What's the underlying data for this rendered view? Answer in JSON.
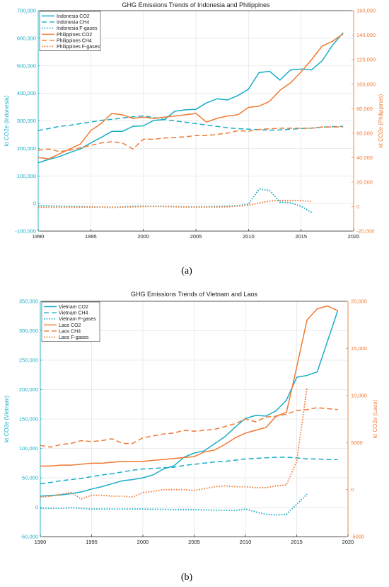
{
  "colors": {
    "left": "#1aaec6",
    "right": "#f07a35",
    "grid": "#e6e6e6",
    "axis": "#222222"
  },
  "chart_data": [
    {
      "type": "line",
      "caption": "(a)",
      "title": "GHG Emissions Trends of Indonesia and Philippines",
      "xlabel": "",
      "xlim": [
        1990,
        2020
      ],
      "xticks": [
        1990,
        1995,
        2000,
        2005,
        2010,
        2015,
        2020
      ],
      "left_axis": {
        "label": "kt CO2e (Indonesia)",
        "lim": [
          -100000,
          700000
        ],
        "ticks": [
          -100000,
          0,
          100000,
          200000,
          300000,
          400000,
          500000,
          600000,
          700000
        ],
        "tick_labels": [
          "-100,000",
          "0",
          "100,000",
          "200,000",
          "300,000",
          "400,000",
          "500,000",
          "600,000",
          "700,000"
        ]
      },
      "right_axis": {
        "label": "kt CO2e (Philippines)",
        "lim": [
          -20000,
          160000
        ],
        "ticks": [
          -20000,
          0,
          20000,
          40000,
          60000,
          80000,
          100000,
          120000,
          140000,
          160000
        ],
        "tick_labels": [
          "-20,000",
          "0",
          "20,000",
          "40,000",
          "60,000",
          "80,000",
          "100,000",
          "120,000",
          "140,000",
          "160,000"
        ]
      },
      "legend_position": "top-left",
      "series": [
        {
          "name": "Indonesia CO2",
          "axis": "left",
          "style": "solid",
          "x": [
            1990,
            1991,
            1992,
            1993,
            1994,
            1995,
            1996,
            1997,
            1998,
            1999,
            2000,
            2001,
            2002,
            2003,
            2004,
            2005,
            2006,
            2007,
            2008,
            2009,
            2010,
            2011,
            2012,
            2013,
            2014,
            2015,
            2016,
            2017,
            2018,
            2019
          ],
          "y": [
            148000,
            160000,
            170000,
            185000,
            198000,
            220000,
            240000,
            262000,
            262000,
            280000,
            282000,
            302000,
            305000,
            335000,
            340000,
            342000,
            365000,
            380000,
            376000,
            392000,
            415000,
            475000,
            480000,
            448000,
            485000,
            488000,
            485000,
            518000,
            575000,
            620000
          ]
        },
        {
          "name": "Indonesia CH4",
          "axis": "left",
          "style": "dashed",
          "x": [
            1990,
            1991,
            1992,
            1993,
            1994,
            1995,
            1996,
            1997,
            1998,
            1999,
            2000,
            2001,
            2002,
            2003,
            2004,
            2005,
            2006,
            2007,
            2008,
            2009,
            2010,
            2011,
            2012,
            2013,
            2014,
            2015,
            2016,
            2017,
            2018,
            2019
          ],
          "y": [
            265000,
            272000,
            280000,
            284000,
            290000,
            296000,
            302000,
            306000,
            310000,
            315000,
            318000,
            312000,
            305000,
            300000,
            295000,
            290000,
            285000,
            280000,
            275000,
            272000,
            270000,
            268000,
            266000,
            267000,
            270000,
            272000,
            274000,
            277000,
            279000,
            280000
          ]
        },
        {
          "name": "Indonesia F-gases",
          "axis": "left",
          "style": "dotted",
          "x": [
            1990,
            1991,
            1992,
            1993,
            1994,
            1995,
            1996,
            1997,
            1998,
            1999,
            2000,
            2001,
            2002,
            2003,
            2004,
            2005,
            2006,
            2007,
            2008,
            2009,
            2010,
            2011,
            2012,
            2013,
            2014,
            2015,
            2016
          ],
          "y": [
            -8000,
            -8000,
            -9000,
            -10000,
            -11000,
            -12000,
            -13000,
            -14000,
            -12000,
            -10000,
            -9000,
            -9000,
            -10000,
            -11000,
            -12000,
            -12000,
            -11000,
            -10000,
            -9000,
            -8000,
            -2000,
            52000,
            48000,
            5000,
            3000,
            -10000,
            -32000
          ]
        },
        {
          "name": "Philippines CO2",
          "axis": "right",
          "style": "solid",
          "x": [
            1990,
            1991,
            1992,
            1993,
            1994,
            1995,
            1996,
            1997,
            1998,
            1999,
            2000,
            2001,
            2002,
            2003,
            2004,
            2005,
            2006,
            2007,
            2008,
            2009,
            2010,
            2011,
            2012,
            2013,
            2014,
            2015,
            2016,
            2017,
            2018,
            2019
          ],
          "y": [
            40000,
            39000,
            43000,
            47000,
            51000,
            62000,
            68000,
            76000,
            75000,
            72000,
            73000,
            72000,
            73000,
            74000,
            75000,
            76000,
            69000,
            72000,
            74000,
            75000,
            81000,
            82000,
            86000,
            95000,
            101000,
            110000,
            120000,
            131000,
            135000,
            141000
          ]
        },
        {
          "name": "Philippines CH4",
          "axis": "right",
          "style": "dashed",
          "x": [
            1990,
            1991,
            1992,
            1993,
            1994,
            1995,
            1996,
            1997,
            1998,
            1999,
            2000,
            2001,
            2002,
            2003,
            2004,
            2005,
            2006,
            2007,
            2008,
            2009,
            2010,
            2011,
            2012,
            2013,
            2014,
            2015,
            2016,
            2017,
            2018,
            2019
          ],
          "y": [
            46000,
            47000,
            45000,
            46000,
            48000,
            50000,
            52000,
            53000,
            52000,
            47000,
            55000,
            55000,
            56000,
            56500,
            57000,
            58000,
            58000,
            59000,
            60000,
            62000,
            61500,
            63000,
            63500,
            64000,
            64000,
            64000,
            64000,
            65000,
            65000,
            65000
          ]
        },
        {
          "name": "Philippines F-gases",
          "axis": "right",
          "style": "dotted",
          "x": [
            1990,
            1992,
            1994,
            1996,
            1998,
            2000,
            2002,
            2004,
            2006,
            2008,
            2010,
            2011,
            2012,
            2013,
            2014,
            2015,
            2016
          ],
          "y": [
            -500,
            -500,
            -500,
            -300,
            -500,
            0,
            0,
            -300,
            -500,
            -200,
            1000,
            3000,
            4500,
            5000,
            5000,
            5000,
            4000
          ]
        }
      ]
    },
    {
      "type": "line",
      "caption": "(b)",
      "title": "GHG Emissions Trends of Vietnam and Laos",
      "xlabel": "",
      "xlim": [
        1990,
        2020
      ],
      "xticks": [
        1990,
        1995,
        2000,
        2005,
        2010,
        2015,
        2020
      ],
      "left_axis": {
        "label": "kt CO2e (Vietnam)",
        "lim": [
          -50000,
          350000
        ],
        "ticks": [
          -50000,
          0,
          50000,
          100000,
          150000,
          200000,
          250000,
          300000,
          350000
        ],
        "tick_labels": [
          "-50,000",
          "0",
          "50,000",
          "100,000",
          "150,000",
          "200,000",
          "250,000",
          "300,000",
          "350,000"
        ]
      },
      "right_axis": {
        "label": "kt CO2e (Laos)",
        "lim": [
          -5000,
          20000
        ],
        "ticks": [
          -5000,
          0,
          5000,
          10000,
          15000,
          20000
        ],
        "tick_labels": [
          "-5000",
          "0",
          "5000",
          "10,000",
          "15,000",
          "20,000"
        ]
      },
      "legend_position": "top-left",
      "series": [
        {
          "name": "Vietnam CO2",
          "axis": "left",
          "style": "solid",
          "x": [
            1990,
            1991,
            1992,
            1993,
            1994,
            1995,
            1996,
            1997,
            1998,
            1999,
            2000,
            2001,
            2002,
            2003,
            2004,
            2005,
            2006,
            2007,
            2008,
            2009,
            2010,
            2011,
            2012,
            2013,
            2014,
            2015,
            2016,
            2017,
            2018,
            2019
          ],
          "y": [
            19000,
            20000,
            21000,
            23000,
            26000,
            31000,
            35000,
            40000,
            45000,
            47000,
            50000,
            55000,
            65000,
            70000,
            85000,
            92000,
            96000,
            108000,
            120000,
            136000,
            151000,
            156000,
            155000,
            164000,
            182000,
            221000,
            224000,
            230000,
            282000,
            334000
          ]
        },
        {
          "name": "Vietnam CH4",
          "axis": "left",
          "style": "dashed",
          "x": [
            1990,
            1991,
            1992,
            1993,
            1994,
            1995,
            1996,
            1997,
            1998,
            1999,
            2000,
            2001,
            2002,
            2003,
            2004,
            2005,
            2006,
            2007,
            2008,
            2009,
            2010,
            2011,
            2012,
            2013,
            2014,
            2015,
            2016,
            2017,
            2018,
            2019
          ],
          "y": [
            40000,
            42000,
            45000,
            47000,
            49000,
            52000,
            55000,
            57000,
            60000,
            63000,
            65000,
            66000,
            67000,
            68000,
            71000,
            73000,
            75000,
            77000,
            78000,
            80000,
            82000,
            83000,
            84000,
            85000,
            85000,
            84000,
            82000,
            82000,
            81000,
            81000
          ]
        },
        {
          "name": "Vietnam F-gases",
          "axis": "left",
          "style": "dotted",
          "x": [
            1990,
            1991,
            1992,
            1993,
            1994,
            1995,
            1996,
            1997,
            1998,
            1999,
            2000,
            2001,
            2002,
            2003,
            2004,
            2005,
            2006,
            2007,
            2008,
            2009,
            2010,
            2011,
            2012,
            2013,
            2014,
            2015,
            2016
          ],
          "y": [
            -2000,
            -2000,
            -2000,
            -1000,
            -2000,
            -3000,
            -3000,
            -3000,
            -3000,
            -3000,
            -3000,
            -3500,
            -3500,
            -4000,
            -4000,
            -4000,
            -4500,
            -5000,
            -5000,
            -5500,
            -3000,
            -8000,
            -12000,
            -13000,
            -12000,
            5000,
            22000
          ]
        },
        {
          "name": "Laos CO2",
          "axis": "right",
          "style": "solid",
          "x": [
            1990,
            1991,
            1992,
            1993,
            1994,
            1995,
            1996,
            1997,
            1998,
            1999,
            2000,
            2001,
            2002,
            2003,
            2004,
            2005,
            2006,
            2007,
            2008,
            2009,
            2010,
            2011,
            2012,
            2013,
            2014,
            2015,
            2016,
            2017,
            2018,
            2019
          ],
          "y": [
            2500,
            2500,
            2600,
            2600,
            2700,
            2800,
            2800,
            2900,
            3000,
            3000,
            3000,
            3100,
            3200,
            3300,
            3400,
            3500,
            4000,
            4200,
            4800,
            5500,
            6000,
            6300,
            6600,
            7800,
            8200,
            13000,
            18000,
            19200,
            19500,
            19000
          ]
        },
        {
          "name": "Laos CH4",
          "axis": "right",
          "style": "dashed",
          "x": [
            1990,
            1991,
            1992,
            1993,
            1994,
            1995,
            1996,
            1997,
            1998,
            1999,
            2000,
            2001,
            2002,
            2003,
            2004,
            2005,
            2006,
            2007,
            2008,
            2009,
            2010,
            2011,
            2012,
            2013,
            2014,
            2015,
            2016,
            2017,
            2018,
            2019
          ],
          "y": [
            4700,
            4500,
            4800,
            4900,
            5200,
            5100,
            5200,
            5400,
            4900,
            4900,
            5500,
            5700,
            5900,
            6000,
            6300,
            6200,
            6300,
            6400,
            6700,
            7000,
            7500,
            7200,
            7700,
            7800,
            8000,
            8400,
            8500,
            8700,
            8600,
            8500
          ]
        },
        {
          "name": "Laos F-gases",
          "axis": "right",
          "style": "dotted",
          "x": [
            1990,
            1991,
            1992,
            1993,
            1994,
            1995,
            1996,
            1997,
            1998,
            1999,
            2000,
            2001,
            2002,
            2003,
            2004,
            2005,
            2006,
            2007,
            2008,
            2009,
            2010,
            2011,
            2012,
            2013,
            2014,
            2015,
            2016
          ],
          "y": [
            -800,
            -700,
            -500,
            -300,
            -1000,
            -600,
            -600,
            -700,
            -700,
            -800,
            -300,
            -200,
            0,
            0,
            0,
            -100,
            100,
            300,
            400,
            300,
            300,
            200,
            200,
            400,
            500,
            3000,
            10800
          ]
        }
      ]
    }
  ]
}
